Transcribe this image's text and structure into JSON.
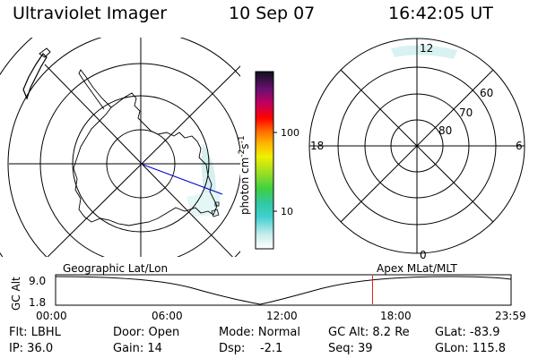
{
  "header": {
    "instrument": "Ultraviolet Imager",
    "date": "10 Sep 07",
    "time": "16:42:05 UT"
  },
  "colorbar": {
    "unit_main": "photon cm",
    "unit_sup1": "-2",
    "unit_mid": "s",
    "unit_sup2": "-1",
    "ticks": [
      "100",
      "10"
    ]
  },
  "left_map": {
    "projection_label": "Geographic Lat/Lon"
  },
  "right_map": {
    "projection_label": "Apex MLat/MLT",
    "mlt_labels": {
      "top": "12",
      "left": "18",
      "right": "6",
      "bottom": "0"
    },
    "lat_labels": [
      "60",
      "70",
      "80"
    ]
  },
  "timeline": {
    "ylabel": "GC Alt",
    "y_ticks": [
      "9.0",
      "1.8"
    ],
    "x_ticks": [
      "00:00",
      "06:00",
      "12:00",
      "18:00",
      "23:59"
    ],
    "current_time_hours": 16.7
  },
  "info": {
    "filter": "Flt: LBHL",
    "ip": "IP: 36.0",
    "door": "Door: Open",
    "gain": "Gain: 14",
    "mode": "Mode: Normal",
    "dsp": "Dsp:    -2.1",
    "gc_alt": "GC Alt: 8.2 Re",
    "seq": "Seq: 39",
    "glat": "GLat: -83.9",
    "glon": "GLon: 115.8"
  },
  "colors": {
    "marker": "#dd2222",
    "track": "#0000cc",
    "aurora": "#cfeeee"
  }
}
